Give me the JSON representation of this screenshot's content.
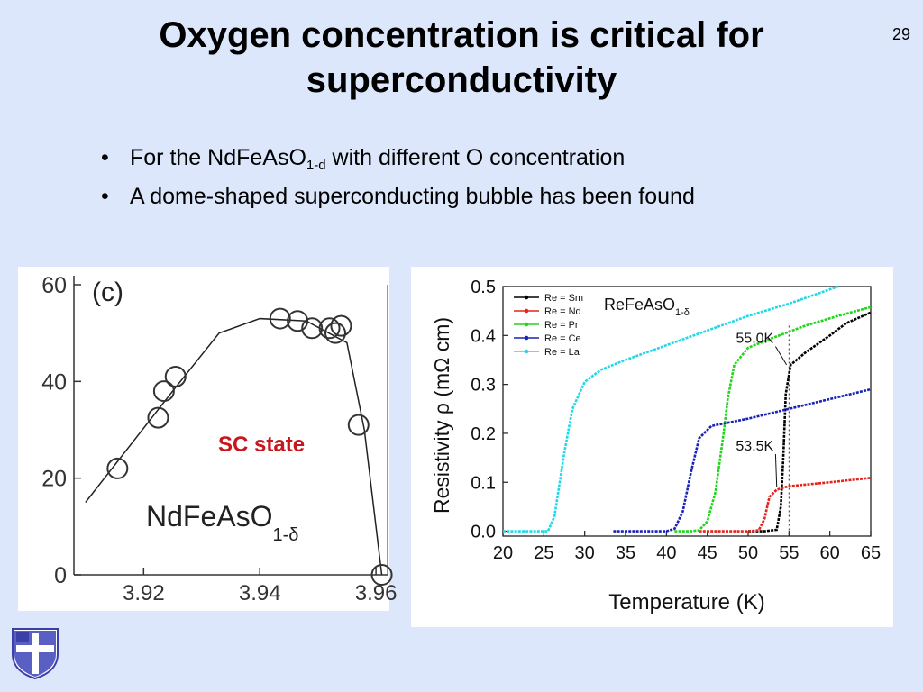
{
  "slide": {
    "title": "Oxygen concentration is critical for superconductivity",
    "page_number": "29",
    "bullets": [
      {
        "pre": "For the NdFeAsO",
        "sub": "1-d",
        "post": " with different O concentration"
      },
      {
        "pre": "A dome-shaped superconducting bubble has been found",
        "sub": "",
        "post": ""
      }
    ]
  },
  "colors": {
    "background": "#dde7fb",
    "sm": "#000000",
    "nd": "#e3231c",
    "pr": "#22d41c",
    "ce": "#1a22b8",
    "la": "#22d8e6",
    "sc_label": "#c8161d"
  },
  "chart_data": [
    {
      "type": "scatter",
      "panel_label": "(c)",
      "annotation": "SC state",
      "compound_main": "NdFeAsO",
      "compound_sub": "1-δ",
      "xlim": [
        3.908,
        3.962
      ],
      "ylim": [
        0,
        60
      ],
      "x_ticks": [
        "3.92",
        "3.94",
        "3.96"
      ],
      "y_ticks": [
        "0",
        "20",
        "40",
        "60"
      ],
      "points": [
        {
          "x": 3.9155,
          "y": 22
        },
        {
          "x": 3.9225,
          "y": 32.5
        },
        {
          "x": 3.9235,
          "y": 38
        },
        {
          "x": 3.9255,
          "y": 41
        },
        {
          "x": 3.9435,
          "y": 53
        },
        {
          "x": 3.9465,
          "y": 52.5
        },
        {
          "x": 3.949,
          "y": 51
        },
        {
          "x": 3.952,
          "y": 51
        },
        {
          "x": 3.953,
          "y": 50
        },
        {
          "x": 3.954,
          "y": 51.5
        },
        {
          "x": 3.957,
          "y": 31
        },
        {
          "x": 3.961,
          "y": 0
        }
      ],
      "fit_line": [
        {
          "x": 3.91,
          "y": 15
        },
        {
          "x": 3.925,
          "y": 38
        },
        {
          "x": 3.933,
          "y": 50
        },
        {
          "x": 3.94,
          "y": 53
        },
        {
          "x": 3.948,
          "y": 52.5
        },
        {
          "x": 3.955,
          "y": 48
        },
        {
          "x": 3.958,
          "y": 30
        },
        {
          "x": 3.961,
          "y": 0
        }
      ]
    },
    {
      "type": "line",
      "title": "ReFeAsO",
      "title_sub": "1-δ",
      "xlabel": "Temperature (K)",
      "ylabel": "Resistivity ρ (mΩ cm)",
      "xlim": [
        20,
        65
      ],
      "ylim": [
        -0.01,
        0.5
      ],
      "x_ticks": [
        20,
        25,
        30,
        35,
        40,
        45,
        50,
        55,
        60,
        65
      ],
      "y_ticks": [
        "0.0",
        "0.1",
        "0.2",
        "0.3",
        "0.4",
        "0.5"
      ],
      "legend_position": "top-left",
      "annotations": [
        {
          "text": "55.0K",
          "at": [
            54.7,
            0.34
          ],
          "label_at": [
            48.5,
            0.385
          ]
        },
        {
          "text": "53.5K",
          "at": [
            53.5,
            0.09
          ],
          "label_at": [
            48.5,
            0.165
          ]
        }
      ],
      "vline_x": 55,
      "series": [
        {
          "name": "Re = Sm",
          "color_key": "sm",
          "points": [
            [
              50,
              0
            ],
            [
              52,
              0
            ],
            [
              53.5,
              0.003
            ],
            [
              54,
              0.05
            ],
            [
              54.3,
              0.15
            ],
            [
              54.6,
              0.28
            ],
            [
              55.2,
              0.34
            ],
            [
              57,
              0.365
            ],
            [
              60,
              0.4
            ],
            [
              62,
              0.425
            ],
            [
              65,
              0.447
            ]
          ]
        },
        {
          "name": "Re = Nd",
          "color_key": "nd",
          "points": [
            [
              44,
              0
            ],
            [
              50,
              0
            ],
            [
              51.3,
              0.002
            ],
            [
              52,
              0.025
            ],
            [
              52.6,
              0.07
            ],
            [
              53.5,
              0.085
            ],
            [
              55,
              0.092
            ],
            [
              60,
              0.1
            ],
            [
              65,
              0.109
            ]
          ]
        },
        {
          "name": "Re = Pr",
          "color_key": "pr",
          "points": [
            [
              41,
              0
            ],
            [
              43,
              0
            ],
            [
              44,
              0.002
            ],
            [
              45,
              0.02
            ],
            [
              46,
              0.08
            ],
            [
              47,
              0.2
            ],
            [
              47.5,
              0.27
            ],
            [
              48.3,
              0.34
            ],
            [
              50,
              0.375
            ],
            [
              53,
              0.395
            ],
            [
              57,
              0.42
            ],
            [
              61,
              0.44
            ],
            [
              65,
              0.458
            ]
          ]
        },
        {
          "name": "Re = Ce",
          "color_key": "ce",
          "points": [
            [
              33.5,
              0
            ],
            [
              40,
              0
            ],
            [
              41,
              0.005
            ],
            [
              42,
              0.04
            ],
            [
              43,
              0.12
            ],
            [
              44,
              0.19
            ],
            [
              45.5,
              0.215
            ],
            [
              50,
              0.23
            ],
            [
              55,
              0.25
            ],
            [
              60,
              0.27
            ],
            [
              65,
              0.29
            ]
          ]
        },
        {
          "name": "Re = La",
          "color_key": "la",
          "points": [
            [
              20,
              0
            ],
            [
              25.5,
              0
            ],
            [
              26.3,
              0.03
            ],
            [
              27.5,
              0.16
            ],
            [
              28.5,
              0.25
            ],
            [
              30,
              0.305
            ],
            [
              32,
              0.33
            ],
            [
              35,
              0.35
            ],
            [
              40,
              0.38
            ],
            [
              45,
              0.41
            ],
            [
              50,
              0.44
            ],
            [
              55,
              0.465
            ],
            [
              61,
              0.5
            ]
          ]
        }
      ]
    }
  ]
}
